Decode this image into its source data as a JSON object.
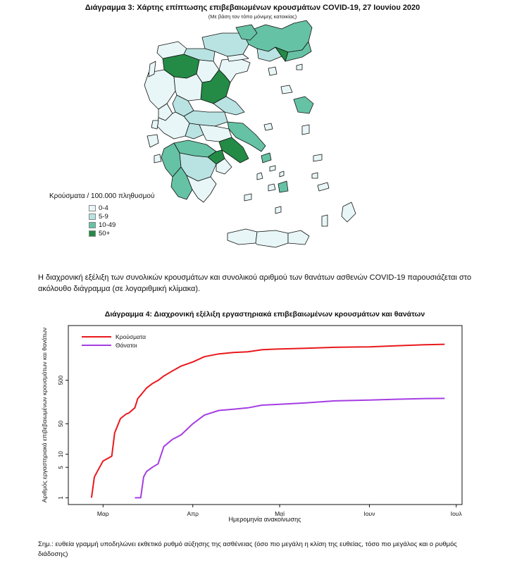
{
  "map_figure": {
    "title": "Διάγραμμα 3: Χάρτης επίπτωσης επιβεβαιωμένων κρουσμάτων COVID-19, 27 Ιουνίου 2020",
    "subtitle": "(Με βάση τον τόπο μόνιμης κατοικίας)",
    "legend_title": "Κρούσματα / 100.000 πληθυσμού",
    "legend": [
      {
        "label": "0-4",
        "color": "#e8f6f7"
      },
      {
        "label": "5-9",
        "color": "#b9e3e2"
      },
      {
        "label": "10-49",
        "color": "#66c2a4"
      },
      {
        "label": "50+",
        "color": "#238b45"
      }
    ]
  },
  "paragraph_1": "Η διαχρονική εξέλιξη των συνολικών κρουσμάτων και συνολικού αριθμού των θανάτων ασθενών COVID-19 παρουσιάζεται στο ακόλουθο διάγραμμα (σε λογαριθμική κλίμακα).",
  "chart_data": {
    "type": "line",
    "title": "Διάγραμμα 4: Διαχρονική εξέλιξη εργαστηριακά επιβεβαιωμένων κρουσμάτων και θανάτων",
    "xlabel": "Ημερομηνία ανακοίνωσης",
    "ylabel": "Αριθμός εργαστηριακά επιβεβαιωμένων κρουσμάτων και θανάτων",
    "y_scale": "log",
    "y_ticks": [
      1,
      5,
      10,
      50,
      500
    ],
    "x_ticks": [
      "Μαρ",
      "Απρ",
      "Μαϊ",
      "Ιουν",
      "Ιουλ"
    ],
    "ylim": [
      0.7,
      9000
    ],
    "legend_position": "top-left",
    "series": [
      {
        "name": "Κρούσματα",
        "color": "#e8191c",
        "points": [
          [
            "2020-02-26",
            1
          ],
          [
            "2020-02-27",
            3
          ],
          [
            "2020-02-28",
            4
          ],
          [
            "2020-03-01",
            7
          ],
          [
            "2020-03-04",
            9
          ],
          [
            "2020-03-05",
            31
          ],
          [
            "2020-03-06",
            45
          ],
          [
            "2020-03-07",
            66
          ],
          [
            "2020-03-09",
            84
          ],
          [
            "2020-03-10",
            89
          ],
          [
            "2020-03-12",
            117
          ],
          [
            "2020-03-13",
            190
          ],
          [
            "2020-03-14",
            228
          ],
          [
            "2020-03-16",
            331
          ],
          [
            "2020-03-18",
            418
          ],
          [
            "2020-03-20",
            495
          ],
          [
            "2020-03-22",
            624
          ],
          [
            "2020-03-25",
            821
          ],
          [
            "2020-03-28",
            1061
          ],
          [
            "2020-04-01",
            1314
          ],
          [
            "2020-04-05",
            1735
          ],
          [
            "2020-04-10",
            2011
          ],
          [
            "2020-04-15",
            2170
          ],
          [
            "2020-04-20",
            2245
          ],
          [
            "2020-04-25",
            2506
          ],
          [
            "2020-04-30",
            2591
          ],
          [
            "2020-05-10",
            2710
          ],
          [
            "2020-05-20",
            2850
          ],
          [
            "2020-06-01",
            2918
          ],
          [
            "2020-06-10",
            3083
          ],
          [
            "2020-06-20",
            3256
          ],
          [
            "2020-06-27",
            3343
          ]
        ]
      },
      {
        "name": "Θάνατοι",
        "color": "#a53ee3",
        "points": [
          [
            "2020-03-12",
            1
          ],
          [
            "2020-03-14",
            1
          ],
          [
            "2020-03-15",
            3
          ],
          [
            "2020-03-16",
            4
          ],
          [
            "2020-03-18",
            5
          ],
          [
            "2020-03-20",
            6
          ],
          [
            "2020-03-22",
            15
          ],
          [
            "2020-03-25",
            22
          ],
          [
            "2020-03-28",
            28
          ],
          [
            "2020-04-01",
            50
          ],
          [
            "2020-04-05",
            79
          ],
          [
            "2020-04-10",
            101
          ],
          [
            "2020-04-15",
            108
          ],
          [
            "2020-04-20",
            116
          ],
          [
            "2020-04-25",
            134
          ],
          [
            "2020-05-01",
            140
          ],
          [
            "2020-05-10",
            151
          ],
          [
            "2020-05-20",
            168
          ],
          [
            "2020-06-01",
            175
          ],
          [
            "2020-06-10",
            183
          ],
          [
            "2020-06-20",
            190
          ],
          [
            "2020-06-27",
            191
          ]
        ]
      }
    ]
  },
  "note": "Σημ.: ευθεία γραμμή υποδηλώνει εκθετικό ρυθμό αύξησης της ασθένειας (όσο πιο μεγάλη η κλίση της ευθείας, τόσο πιο μεγάλος και ο ρυθμός διάδοσης)"
}
